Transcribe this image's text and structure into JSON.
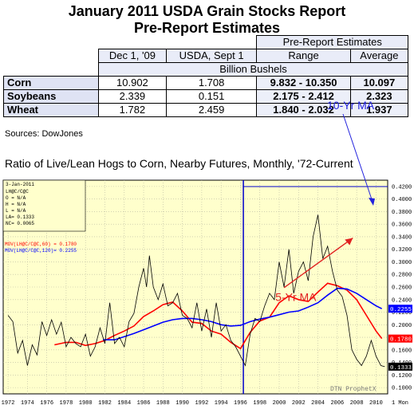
{
  "title_line1": "January 2011 USDA Grain Stocks Report",
  "title_line2": "Pre-Report Estimates",
  "table": {
    "group_header": "Pre-Report Estimates",
    "col_headers": [
      "Dec 1, '09",
      "USDA, Sept 1",
      "Range",
      "Average"
    ],
    "units": "Billion Bushels",
    "rows": [
      {
        "label": "Corn",
        "dec": "10.902",
        "sept": "1.708",
        "range": "9.832 - 10.350",
        "avg": "10.097"
      },
      {
        "label": "Soybeans",
        "dec": "2.339",
        "sept": "0.151",
        "range": "2.175 - 2.412",
        "avg": "2.323"
      },
      {
        "label": "Wheat",
        "dec": "1.782",
        "sept": "2.459",
        "range": "1.840 - 2.032",
        "avg": "1.937"
      }
    ]
  },
  "sources": "Sources:  DowJones",
  "chart_title": "Ratio of Live/Lean Hogs to Corn, Nearby Futures, Monthly, '72-Current",
  "chart_data": {
    "type": "line",
    "date_label": "3-Jan-2011",
    "legend_lines": [
      "LH@C/C@C",
      "O = N/A",
      "H = N/A",
      "L = N/A",
      "LA= 0.1333",
      "NC= 0.0065"
    ],
    "ma_labels": [
      "MOV(LH@C/C@C,60) = 0.1780",
      "MOV(LH@C/C@C,120)= 0.2255"
    ],
    "colors": {
      "price": "#000000",
      "ma60": "#ff0000",
      "ma120": "#0000ff",
      "annotation": "#e02020",
      "arrow_blue": "#2222dd",
      "background": "#ffffcc"
    },
    "y_ticks": [
      "0.4200",
      "0.4000",
      "0.3800",
      "0.3600",
      "0.3400",
      "0.3200",
      "0.3000",
      "0.2800",
      "0.2600",
      "0.2400",
      "0.2200",
      "0.2000",
      "0.1800",
      "0.1600",
      "0.1400",
      "0.1200",
      "0.1000"
    ],
    "ylim": [
      0.09,
      0.43
    ],
    "x_ticks": [
      "1972",
      "1974",
      "1976",
      "1978",
      "1980",
      "1982",
      "1984",
      "1986",
      "1988",
      "1990",
      "1992",
      "1994",
      "1996",
      "1998",
      "2000",
      "2002",
      "2004",
      "2006",
      "2008",
      "2010"
    ],
    "xlim": [
      1971.5,
      2011.2
    ],
    "right_badges": [
      {
        "text": "0.2255",
        "color": "#0000ff",
        "value": 0.2255
      },
      {
        "text": "0.1780",
        "color": "#ff0000",
        "value": 0.178
      },
      {
        "text": "0.1333",
        "color": "#000000",
        "value": 0.1333
      }
    ],
    "vline_x": 1996.3,
    "annotations": {
      "ma5": "5-Yr MA",
      "ma10": "10-Yr MA"
    },
    "watermark": "DTN ProphetX",
    "period": "1 Mon",
    "series": [
      {
        "name": "MOV(LH@C/C@C,60)",
        "points": [
          [
            1976.8,
            0.168
          ],
          [
            1978,
            0.172
          ],
          [
            1979,
            0.172
          ],
          [
            1980,
            0.167
          ],
          [
            1981,
            0.17
          ],
          [
            1982,
            0.175
          ],
          [
            1983,
            0.183
          ],
          [
            1984,
            0.19
          ],
          [
            1985,
            0.198
          ],
          [
            1986,
            0.213
          ],
          [
            1987,
            0.222
          ],
          [
            1988,
            0.232
          ],
          [
            1989,
            0.236
          ],
          [
            1990,
            0.222
          ],
          [
            1991,
            0.204
          ],
          [
            1992,
            0.202
          ],
          [
            1993,
            0.19
          ],
          [
            1994,
            0.185
          ],
          [
            1995,
            0.172
          ],
          [
            1996,
            0.162
          ],
          [
            1997,
            0.188
          ],
          [
            1998,
            0.206
          ],
          [
            1999,
            0.212
          ],
          [
            2000,
            0.235
          ],
          [
            2001,
            0.246
          ],
          [
            2002,
            0.24
          ],
          [
            2003,
            0.237
          ],
          [
            2004,
            0.252
          ],
          [
            2005,
            0.266
          ],
          [
            2006,
            0.262
          ],
          [
            2007,
            0.255
          ],
          [
            2008,
            0.24
          ],
          [
            2009,
            0.215
          ],
          [
            2010,
            0.19
          ],
          [
            2010.6,
            0.178
          ]
        ]
      },
      {
        "name": "MOV(LH@C/C@C,120)",
        "points": [
          [
            1981.8,
            0.176
          ],
          [
            1983,
            0.176
          ],
          [
            1984,
            0.181
          ],
          [
            1985,
            0.186
          ],
          [
            1986,
            0.192
          ],
          [
            1987,
            0.198
          ],
          [
            1988,
            0.204
          ],
          [
            1989,
            0.208
          ],
          [
            1990,
            0.21
          ],
          [
            1991,
            0.21
          ],
          [
            1992,
            0.208
          ],
          [
            1993,
            0.205
          ],
          [
            1994,
            0.2
          ],
          [
            1995,
            0.198
          ],
          [
            1996,
            0.199
          ],
          [
            1997,
            0.205
          ],
          [
            1998,
            0.209
          ],
          [
            1999,
            0.212
          ],
          [
            2000,
            0.216
          ],
          [
            2001,
            0.22
          ],
          [
            2002,
            0.222
          ],
          [
            2003,
            0.228
          ],
          [
            2004,
            0.235
          ],
          [
            2005,
            0.247
          ],
          [
            2006,
            0.258
          ],
          [
            2007,
            0.257
          ],
          [
            2008,
            0.25
          ],
          [
            2009,
            0.24
          ],
          [
            2010,
            0.23
          ],
          [
            2010.6,
            0.2255
          ]
        ]
      },
      {
        "name": "LH@C/C@C",
        "points": [
          [
            1972,
            0.215
          ],
          [
            1972.5,
            0.205
          ],
          [
            1973,
            0.155
          ],
          [
            1973.5,
            0.175
          ],
          [
            1974,
            0.135
          ],
          [
            1974.5,
            0.168
          ],
          [
            1975,
            0.152
          ],
          [
            1975.5,
            0.205
          ],
          [
            1976,
            0.183
          ],
          [
            1976.5,
            0.208
          ],
          [
            1977,
            0.185
          ],
          [
            1977.5,
            0.204
          ],
          [
            1978,
            0.165
          ],
          [
            1978.5,
            0.18
          ],
          [
            1979,
            0.17
          ],
          [
            1979.5,
            0.165
          ],
          [
            1980,
            0.185
          ],
          [
            1980.5,
            0.15
          ],
          [
            1981,
            0.165
          ],
          [
            1981.5,
            0.195
          ],
          [
            1982,
            0.17
          ],
          [
            1982.5,
            0.235
          ],
          [
            1983,
            0.17
          ],
          [
            1983.5,
            0.18
          ],
          [
            1984,
            0.165
          ],
          [
            1984.5,
            0.205
          ],
          [
            1985,
            0.218
          ],
          [
            1985.5,
            0.26
          ],
          [
            1986,
            0.29
          ],
          [
            1986.3,
            0.26
          ],
          [
            1986.6,
            0.31
          ],
          [
            1987,
            0.26
          ],
          [
            1987.5,
            0.24
          ],
          [
            1988,
            0.265
          ],
          [
            1988.5,
            0.23
          ],
          [
            1989,
            0.235
          ],
          [
            1989.5,
            0.25
          ],
          [
            1990,
            0.215
          ],
          [
            1990.5,
            0.21
          ],
          [
            1991,
            0.195
          ],
          [
            1991.5,
            0.235
          ],
          [
            1992,
            0.19
          ],
          [
            1992.5,
            0.225
          ],
          [
            1993,
            0.18
          ],
          [
            1993.5,
            0.235
          ],
          [
            1994,
            0.19
          ],
          [
            1994.5,
            0.2
          ],
          [
            1995,
            0.175
          ],
          [
            1995.5,
            0.165
          ],
          [
            1996,
            0.15
          ],
          [
            1996.5,
            0.135
          ],
          [
            1997,
            0.185
          ],
          [
            1997.5,
            0.21
          ],
          [
            1998,
            0.205
          ],
          [
            1998.5,
            0.23
          ],
          [
            1999,
            0.25
          ],
          [
            1999.5,
            0.24
          ],
          [
            2000,
            0.3
          ],
          [
            2000.5,
            0.26
          ],
          [
            2001,
            0.32
          ],
          [
            2001.5,
            0.25
          ],
          [
            2002,
            0.285
          ],
          [
            2002.5,
            0.3
          ],
          [
            2003,
            0.27
          ],
          [
            2003.5,
            0.34
          ],
          [
            2004,
            0.375
          ],
          [
            2004.5,
            0.305
          ],
          [
            2005,
            0.325
          ],
          [
            2005.5,
            0.285
          ],
          [
            2006,
            0.255
          ],
          [
            2006.5,
            0.245
          ],
          [
            2007,
            0.215
          ],
          [
            2007.5,
            0.16
          ],
          [
            2008,
            0.145
          ],
          [
            2008.5,
            0.135
          ],
          [
            2009,
            0.15
          ],
          [
            2009.5,
            0.175
          ],
          [
            2010,
            0.15
          ],
          [
            2010.5,
            0.135
          ],
          [
            2010.9,
            0.1333
          ]
        ]
      }
    ]
  }
}
